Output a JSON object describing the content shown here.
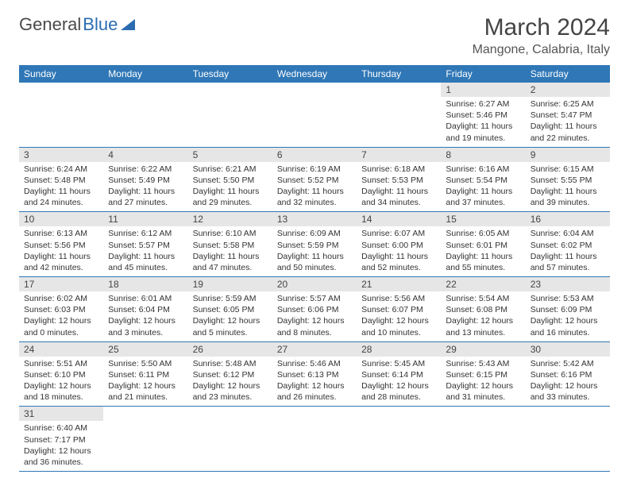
{
  "logo": {
    "text1": "General",
    "text2": "Blue"
  },
  "title": "March 2024",
  "location": "Mangone, Calabria, Italy",
  "colors": {
    "header_bg": "#2f77b6",
    "header_text": "#ffffff",
    "daynum_bg": "#e6e6e6",
    "row_border": "#2f77b6",
    "logo_blue": "#2b6cb0"
  },
  "weekdays": [
    "Sunday",
    "Monday",
    "Tuesday",
    "Wednesday",
    "Thursday",
    "Friday",
    "Saturday"
  ],
  "weeks": [
    [
      null,
      null,
      null,
      null,
      null,
      {
        "n": "1",
        "sr": "Sunrise: 6:27 AM",
        "ss": "Sunset: 5:46 PM",
        "dl": "Daylight: 11 hours and 19 minutes."
      },
      {
        "n": "2",
        "sr": "Sunrise: 6:25 AM",
        "ss": "Sunset: 5:47 PM",
        "dl": "Daylight: 11 hours and 22 minutes."
      }
    ],
    [
      {
        "n": "3",
        "sr": "Sunrise: 6:24 AM",
        "ss": "Sunset: 5:48 PM",
        "dl": "Daylight: 11 hours and 24 minutes."
      },
      {
        "n": "4",
        "sr": "Sunrise: 6:22 AM",
        "ss": "Sunset: 5:49 PM",
        "dl": "Daylight: 11 hours and 27 minutes."
      },
      {
        "n": "5",
        "sr": "Sunrise: 6:21 AM",
        "ss": "Sunset: 5:50 PM",
        "dl": "Daylight: 11 hours and 29 minutes."
      },
      {
        "n": "6",
        "sr": "Sunrise: 6:19 AM",
        "ss": "Sunset: 5:52 PM",
        "dl": "Daylight: 11 hours and 32 minutes."
      },
      {
        "n": "7",
        "sr": "Sunrise: 6:18 AM",
        "ss": "Sunset: 5:53 PM",
        "dl": "Daylight: 11 hours and 34 minutes."
      },
      {
        "n": "8",
        "sr": "Sunrise: 6:16 AM",
        "ss": "Sunset: 5:54 PM",
        "dl": "Daylight: 11 hours and 37 minutes."
      },
      {
        "n": "9",
        "sr": "Sunrise: 6:15 AM",
        "ss": "Sunset: 5:55 PM",
        "dl": "Daylight: 11 hours and 39 minutes."
      }
    ],
    [
      {
        "n": "10",
        "sr": "Sunrise: 6:13 AM",
        "ss": "Sunset: 5:56 PM",
        "dl": "Daylight: 11 hours and 42 minutes."
      },
      {
        "n": "11",
        "sr": "Sunrise: 6:12 AM",
        "ss": "Sunset: 5:57 PM",
        "dl": "Daylight: 11 hours and 45 minutes."
      },
      {
        "n": "12",
        "sr": "Sunrise: 6:10 AM",
        "ss": "Sunset: 5:58 PM",
        "dl": "Daylight: 11 hours and 47 minutes."
      },
      {
        "n": "13",
        "sr": "Sunrise: 6:09 AM",
        "ss": "Sunset: 5:59 PM",
        "dl": "Daylight: 11 hours and 50 minutes."
      },
      {
        "n": "14",
        "sr": "Sunrise: 6:07 AM",
        "ss": "Sunset: 6:00 PM",
        "dl": "Daylight: 11 hours and 52 minutes."
      },
      {
        "n": "15",
        "sr": "Sunrise: 6:05 AM",
        "ss": "Sunset: 6:01 PM",
        "dl": "Daylight: 11 hours and 55 minutes."
      },
      {
        "n": "16",
        "sr": "Sunrise: 6:04 AM",
        "ss": "Sunset: 6:02 PM",
        "dl": "Daylight: 11 hours and 57 minutes."
      }
    ],
    [
      {
        "n": "17",
        "sr": "Sunrise: 6:02 AM",
        "ss": "Sunset: 6:03 PM",
        "dl": "Daylight: 12 hours and 0 minutes."
      },
      {
        "n": "18",
        "sr": "Sunrise: 6:01 AM",
        "ss": "Sunset: 6:04 PM",
        "dl": "Daylight: 12 hours and 3 minutes."
      },
      {
        "n": "19",
        "sr": "Sunrise: 5:59 AM",
        "ss": "Sunset: 6:05 PM",
        "dl": "Daylight: 12 hours and 5 minutes."
      },
      {
        "n": "20",
        "sr": "Sunrise: 5:57 AM",
        "ss": "Sunset: 6:06 PM",
        "dl": "Daylight: 12 hours and 8 minutes."
      },
      {
        "n": "21",
        "sr": "Sunrise: 5:56 AM",
        "ss": "Sunset: 6:07 PM",
        "dl": "Daylight: 12 hours and 10 minutes."
      },
      {
        "n": "22",
        "sr": "Sunrise: 5:54 AM",
        "ss": "Sunset: 6:08 PM",
        "dl": "Daylight: 12 hours and 13 minutes."
      },
      {
        "n": "23",
        "sr": "Sunrise: 5:53 AM",
        "ss": "Sunset: 6:09 PM",
        "dl": "Daylight: 12 hours and 16 minutes."
      }
    ],
    [
      {
        "n": "24",
        "sr": "Sunrise: 5:51 AM",
        "ss": "Sunset: 6:10 PM",
        "dl": "Daylight: 12 hours and 18 minutes."
      },
      {
        "n": "25",
        "sr": "Sunrise: 5:50 AM",
        "ss": "Sunset: 6:11 PM",
        "dl": "Daylight: 12 hours and 21 minutes."
      },
      {
        "n": "26",
        "sr": "Sunrise: 5:48 AM",
        "ss": "Sunset: 6:12 PM",
        "dl": "Daylight: 12 hours and 23 minutes."
      },
      {
        "n": "27",
        "sr": "Sunrise: 5:46 AM",
        "ss": "Sunset: 6:13 PM",
        "dl": "Daylight: 12 hours and 26 minutes."
      },
      {
        "n": "28",
        "sr": "Sunrise: 5:45 AM",
        "ss": "Sunset: 6:14 PM",
        "dl": "Daylight: 12 hours and 28 minutes."
      },
      {
        "n": "29",
        "sr": "Sunrise: 5:43 AM",
        "ss": "Sunset: 6:15 PM",
        "dl": "Daylight: 12 hours and 31 minutes."
      },
      {
        "n": "30",
        "sr": "Sunrise: 5:42 AM",
        "ss": "Sunset: 6:16 PM",
        "dl": "Daylight: 12 hours and 33 minutes."
      }
    ],
    [
      {
        "n": "31",
        "sr": "Sunrise: 6:40 AM",
        "ss": "Sunset: 7:17 PM",
        "dl": "Daylight: 12 hours and 36 minutes."
      },
      null,
      null,
      null,
      null,
      null,
      null
    ]
  ]
}
